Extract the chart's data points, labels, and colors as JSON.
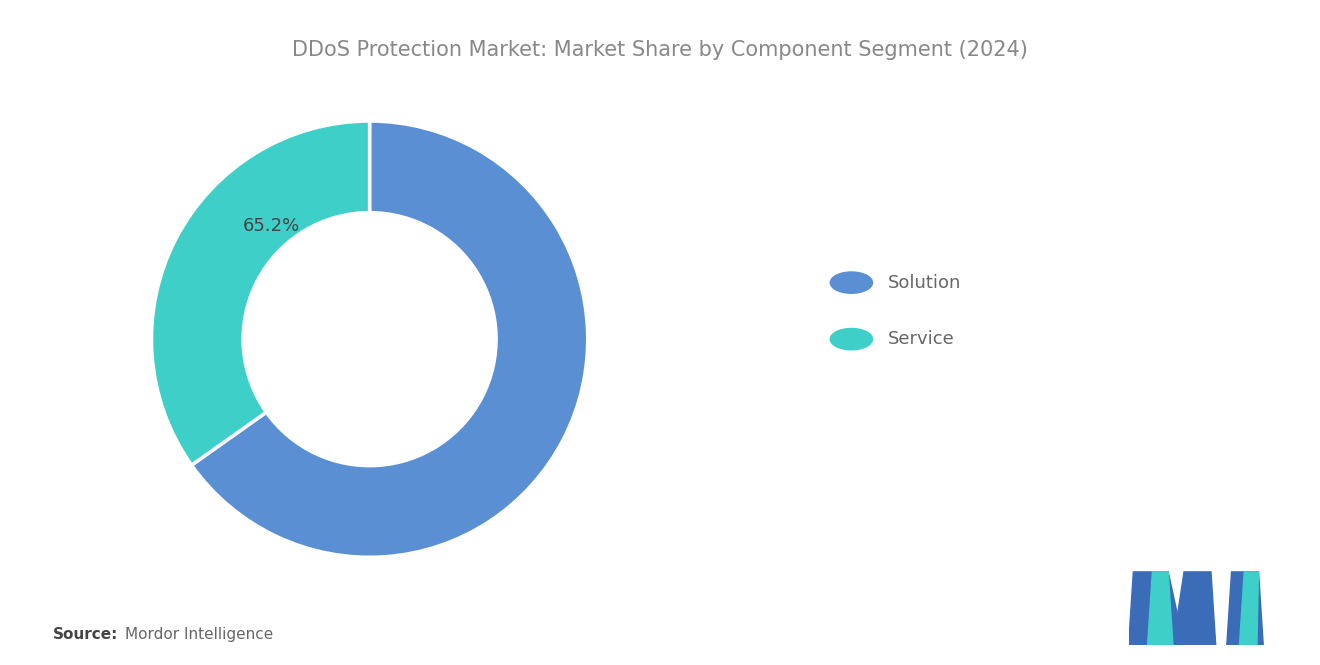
{
  "title": "DDoS Protection Market: Market Share by Component Segment (2024)",
  "segments": [
    "Solution",
    "Service"
  ],
  "values": [
    65.2,
    34.8
  ],
  "colors": [
    "#5B8FD4",
    "#3ECFC8"
  ],
  "label_text": "65.2%",
  "label_color": "#444444",
  "legend_labels": [
    "Solution",
    "Service"
  ],
  "source_bold": "Source:",
  "source_text": "Mordor Intelligence",
  "background_color": "#FFFFFF",
  "title_color": "#888888",
  "text_color": "#666666",
  "title_fontsize": 15,
  "legend_fontsize": 13,
  "source_fontsize": 11,
  "logo_color_blue": "#3B6CB7",
  "logo_color_teal": "#3ECFC8"
}
